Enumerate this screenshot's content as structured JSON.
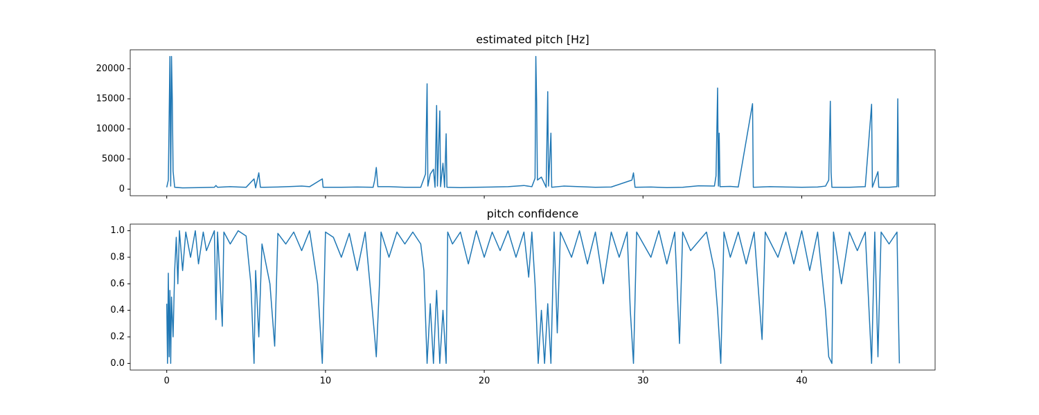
{
  "chart_data": [
    {
      "type": "line",
      "title": "estimated pitch [Hz]",
      "x": [
        0,
        0.1,
        0.2,
        0.25,
        0.3,
        0.35,
        0.4,
        0.5,
        1,
        2,
        3,
        3.1,
        3.2,
        4,
        4.5,
        5,
        5.5,
        5.6,
        5.8,
        5.9,
        7,
        8,
        8.5,
        9,
        9.8,
        9.85,
        11,
        12,
        13,
        13.1,
        13.2,
        13.3,
        14,
        15,
        16,
        16.3,
        16.4,
        16.45,
        16.6,
        16.8,
        16.9,
        17,
        17.05,
        17.2,
        17.25,
        17.4,
        17.5,
        17.6,
        17.65,
        18.5,
        19.5,
        20.5,
        21.5,
        22.5,
        23,
        23.2,
        23.25,
        23.3,
        23.35,
        23.6,
        23.9,
        24,
        24.05,
        24.2,
        24.25,
        25,
        26,
        27,
        28,
        29.3,
        29.4,
        29.5,
        30.5,
        31.5,
        32.5,
        33.5,
        34.5,
        34.6,
        34.7,
        34.75,
        34.8,
        34.85,
        35.5,
        36,
        36.9,
        36.95,
        38,
        39,
        40,
        41,
        41.5,
        41.7,
        41.8,
        41.85,
        41.9,
        43,
        44,
        44.4,
        44.45,
        44.8,
        44.85,
        45.5,
        46,
        46.05,
        46.1
      ],
      "series": [
        {
          "color": "#1f77b4",
          "values": [
            300,
            1500,
            22050,
            500,
            22050,
            15000,
            3000,
            300,
            200,
            250,
            300,
            600,
            300,
            400,
            350,
            300,
            1700,
            200,
            2700,
            300,
            350,
            450,
            500,
            400,
            1700,
            300,
            300,
            350,
            300,
            1500,
            3600,
            400,
            400,
            300,
            300,
            2500,
            17500,
            500,
            2500,
            3300,
            300,
            13900,
            500,
            13000,
            400,
            4300,
            300,
            9200,
            300,
            250,
            300,
            350,
            400,
            600,
            400,
            1800,
            22050,
            14500,
            1500,
            2000,
            300,
            16200,
            500,
            9300,
            300,
            500,
            400,
            300,
            350,
            1500,
            2700,
            300,
            350,
            250,
            300,
            550,
            500,
            2200,
            16800,
            500,
            9300,
            400,
            450,
            350,
            14200,
            300,
            400,
            350,
            300,
            350,
            500,
            1500,
            14600,
            2800,
            300,
            300,
            400,
            14100,
            300,
            2900,
            300,
            300,
            400,
            15000,
            300
          ]
        }
      ],
      "xlim": [
        -2.3,
        48.4
      ],
      "ylim": [
        -1102,
        23152
      ],
      "yticks": [
        0,
        5000,
        10000,
        15000,
        20000
      ]
    },
    {
      "type": "line",
      "title": "pitch confidence",
      "x": [
        0,
        0.05,
        0.1,
        0.15,
        0.2,
        0.25,
        0.3,
        0.4,
        0.5,
        0.6,
        0.7,
        0.8,
        1,
        1.2,
        1.5,
        1.8,
        2,
        2.3,
        2.5,
        3,
        3.1,
        3.2,
        3.5,
        3.6,
        4,
        4.5,
        5,
        5.3,
        5.5,
        5.6,
        5.8,
        6,
        6.5,
        6.8,
        7,
        7.5,
        8,
        8.5,
        9,
        9.5,
        9.8,
        10,
        10.5,
        11,
        11.5,
        12,
        12.5,
        12.8,
        13.1,
        13.2,
        13.4,
        13.5,
        14,
        14.5,
        15,
        15.5,
        16,
        16.2,
        16.4,
        16.6,
        16.8,
        17,
        17.2,
        17.4,
        17.6,
        17.7,
        18,
        18.5,
        19,
        19.5,
        20,
        20.5,
        21,
        21.5,
        22,
        22.5,
        22.8,
        23,
        23.2,
        23.4,
        23.6,
        23.8,
        24,
        24.2,
        24.4,
        24.6,
        24.8,
        25.5,
        26,
        26.5,
        27,
        27.5,
        28,
        28.5,
        29,
        29.2,
        29.4,
        29.6,
        30.5,
        31,
        31.5,
        32,
        32.3,
        32.5,
        33,
        34,
        34.5,
        34.7,
        34.9,
        35.1,
        35.5,
        36,
        36.5,
        37,
        37.5,
        37.7,
        38.5,
        39,
        39.5,
        40,
        40.5,
        41,
        41.5,
        41.7,
        41.9,
        42,
        42.5,
        43,
        43.5,
        44,
        44.4,
        44.6,
        44.8,
        45,
        45.5,
        46,
        46.1,
        46.15
      ],
      "series": [
        {
          "color": "#1f77b4",
          "values": [
            0.45,
            0,
            0.68,
            0.05,
            0.55,
            0,
            0.5,
            0.2,
            0.7,
            0.95,
            0.6,
            1.0,
            0.7,
            0.99,
            0.8,
            1,
            0.75,
            0.99,
            0.85,
            1,
            0.33,
            0.99,
            0.28,
            0.99,
            0.9,
            1,
            0.96,
            0.6,
            0.0,
            0.7,
            0.2,
            0.9,
            0.6,
            0.13,
            0.98,
            0.9,
            0.99,
            0.85,
            1,
            0.6,
            0,
            0.99,
            0.95,
            0.8,
            0.98,
            0.7,
            0.99,
            0.6,
            0.2,
            0.05,
            0.6,
            0.99,
            0.8,
            0.99,
            0.9,
            0.99,
            0.9,
            0.7,
            0.0,
            0.45,
            0.0,
            0.55,
            0,
            0.4,
            0,
            0.99,
            0.9,
            0.99,
            0.75,
            1,
            0.8,
            0.99,
            0.85,
            1,
            0.8,
            0.99,
            0.65,
            0.99,
            0.6,
            0.0,
            0.4,
            0.0,
            0.45,
            0.0,
            0.99,
            0.23,
            0.99,
            0.8,
            1,
            0.75,
            0.99,
            0.6,
            0.99,
            0.8,
            0.99,
            0.4,
            0,
            0.99,
            0.8,
            1,
            0.75,
            0.99,
            0.15,
            0.99,
            0.85,
            0.99,
            0.7,
            0.4,
            0.0,
            0.99,
            0.8,
            0.99,
            0.75,
            0.99,
            0.18,
            0.99,
            0.8,
            0.99,
            0.75,
            1,
            0.7,
            0.99,
            0.4,
            0.05,
            0,
            0.99,
            0.6,
            0.99,
            0.85,
            0.99,
            0.0,
            0.99,
            0.05,
            0.99,
            0.9,
            0.99,
            0.3,
            0
          ]
        }
      ],
      "xlim": [
        -2.3,
        48.4
      ],
      "ylim": [
        -0.05,
        1.05
      ],
      "xticks": [
        0,
        10,
        20,
        30,
        40
      ],
      "yticks": [
        {
          "value": 0,
          "label": "0.0"
        },
        {
          "value": 0.2,
          "label": "0.2"
        },
        {
          "value": 0.4,
          "label": "0.4"
        },
        {
          "value": 0.6,
          "label": "0.6"
        },
        {
          "value": 0.8,
          "label": "0.8"
        },
        {
          "value": 1,
          "label": "1.0"
        }
      ]
    }
  ]
}
